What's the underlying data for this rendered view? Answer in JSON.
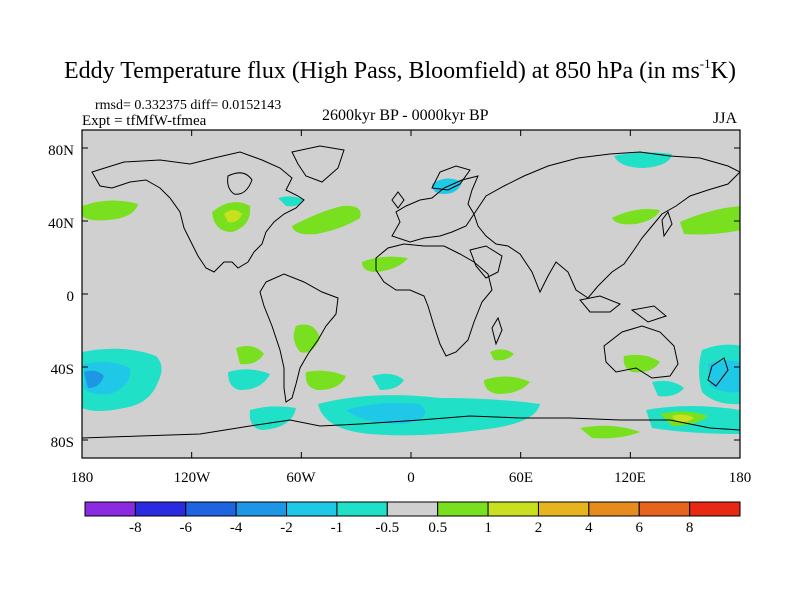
{
  "title": {
    "prefix": "Eddy Temperature flux (High Pass, Bloomfield) at 850 hPa (in ms",
    "sup": "-1",
    "suffix": "K)"
  },
  "stats": "rmsd= 0.332375 diff= 0.0152143",
  "expt": "Expt = tfMfW-tfmea",
  "period": "2600kyr BP - 0000kyr BP",
  "season": "JJA",
  "lat_labels": [
    "80N",
    "40N",
    "0",
    "40S",
    "80S"
  ],
  "lon_labels": [
    "180",
    "120W",
    "60W",
    "0",
    "60E",
    "120E",
    "180"
  ],
  "colorbar": {
    "labels": [
      "-8",
      "-6",
      "-4",
      "-2",
      "-1",
      "-0.5",
      "0.5",
      "1",
      "2",
      "4",
      "6",
      "8"
    ],
    "colors": [
      "#8a2be2",
      "#2a2ae0",
      "#1e64e0",
      "#1e96e6",
      "#20c8e8",
      "#20e0c8",
      "#d0d0d0",
      "#78e01e",
      "#c8e01e",
      "#e6b41e",
      "#e68c1e",
      "#e6641e",
      "#e62814"
    ]
  },
  "map": {
    "background_color": "#d0d0d0",
    "land_outline_color": "#000000"
  }
}
